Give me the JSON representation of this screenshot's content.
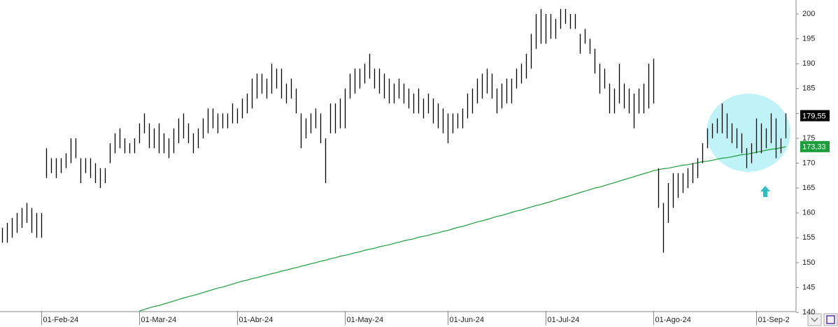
{
  "chart_data": {
    "type": "hilo",
    "categories": [
      null,
      null,
      null,
      null,
      null,
      null,
      null,
      null,
      "01-Feb-24",
      null,
      null,
      null,
      null,
      null,
      null,
      null,
      null,
      null,
      null,
      null,
      null,
      null,
      null,
      null,
      null,
      null,
      null,
      null,
      "01-Mar-24",
      null,
      null,
      null,
      null,
      null,
      null,
      null,
      null,
      null,
      null,
      null,
      null,
      null,
      null,
      null,
      null,
      null,
      null,
      null,
      "01-Abr-24",
      null,
      null,
      null,
      null,
      null,
      null,
      null,
      null,
      null,
      null,
      null,
      null,
      null,
      null,
      null,
      null,
      null,
      null,
      null,
      null,
      null,
      "01-May-24",
      null,
      null,
      null,
      null,
      null,
      null,
      null,
      null,
      null,
      null,
      null,
      null,
      null,
      null,
      null,
      null,
      null,
      null,
      null,
      null,
      "01-Jun-24",
      null,
      null,
      null,
      null,
      null,
      null,
      null,
      null,
      null,
      null,
      null,
      null,
      null,
      null,
      null,
      null,
      null,
      null,
      null,
      "01-Jul-24",
      null,
      null,
      null,
      null,
      null,
      null,
      null,
      null,
      null,
      null,
      null,
      null,
      null,
      null,
      null,
      null,
      null,
      null,
      null,
      null,
      null,
      "01-Ago-24",
      null,
      null,
      null,
      null,
      null,
      null,
      null,
      null,
      null,
      null,
      null,
      null,
      null,
      null,
      null,
      null,
      null,
      null,
      null,
      null,
      "01-Sep-2",
      null,
      null,
      null,
      null,
      null,
      null
    ],
    "series": [
      {
        "color": "#000000",
        "high": [
          157,
          158,
          159,
          160,
          161,
          162,
          161,
          160,
          160,
          173,
          171,
          171,
          171,
          172,
          175,
          175,
          171,
          171,
          171,
          170,
          169,
          169,
          174,
          176,
          177,
          175,
          174,
          175,
          178,
          180,
          178,
          177,
          178,
          176,
          175,
          177,
          179,
          180,
          178,
          176,
          177,
          179,
          181,
          181,
          180,
          180,
          180,
          182,
          181,
          183,
          184,
          187,
          188,
          188,
          187,
          190,
          189,
          189,
          186,
          187,
          185,
          180,
          179,
          180,
          181,
          180,
          175,
          182,
          182,
          183,
          185,
          188,
          189,
          189,
          190,
          192,
          189,
          189,
          188,
          187,
          186,
          187,
          186,
          185,
          184,
          185,
          183,
          184,
          183,
          182,
          181,
          180,
          180,
          180,
          181,
          184,
          185,
          187,
          188,
          189,
          188,
          185,
          186,
          187,
          187,
          189,
          190,
          192,
          196,
          200,
          201,
          200,
          200,
          199,
          201,
          201,
          200,
          200,
          196,
          197,
          195,
          193,
          190,
          189,
          186,
          185,
          190,
          186,
          185,
          184,
          185,
          186,
          190,
          191,
          169,
          162,
          166,
          168,
          168,
          168,
          169,
          170,
          171,
          174,
          177,
          178,
          179,
          182,
          180,
          178,
          177,
          176,
          173,
          174,
          179,
          178,
          177,
          180,
          179,
          175,
          180
        ],
        "low": [
          154,
          154,
          155,
          156,
          157,
          158,
          156,
          155,
          155,
          167,
          168,
          167,
          168,
          169,
          170,
          171,
          166,
          168,
          167,
          166,
          165,
          166,
          170,
          172,
          173,
          172,
          172,
          172,
          174,
          176,
          173,
          173,
          172,
          172,
          171,
          172,
          174,
          175,
          174,
          172,
          173,
          175,
          176,
          177,
          176,
          177,
          177,
          178,
          178,
          179,
          180,
          181,
          183,
          184,
          183,
          184,
          185,
          183,
          182,
          183,
          180,
          173,
          175,
          176,
          177,
          174,
          166,
          176,
          176,
          177,
          177,
          183,
          184,
          185,
          186,
          187,
          185,
          184,
          183,
          182,
          182,
          183,
          182,
          181,
          180,
          180,
          179,
          180,
          178,
          177,
          176,
          174,
          176,
          177,
          177,
          179,
          180,
          182,
          183,
          184,
          183,
          180,
          181,
          182,
          182,
          185,
          186,
          187,
          189,
          193,
          194,
          194,
          195,
          195,
          197,
          198,
          197,
          197,
          192,
          194,
          192,
          188,
          184,
          185,
          180,
          180,
          182,
          181,
          180,
          177,
          180,
          180,
          181,
          182,
          161,
          152,
          158,
          161,
          163,
          164,
          165,
          166,
          167,
          170,
          173,
          175,
          176,
          176,
          175,
          174,
          173,
          172,
          169,
          170,
          172,
          172,
          173,
          174,
          171,
          172,
          175
        ],
        "last_label": {
          "value": 179.55,
          "label": "179,55"
        }
      },
      {
        "color": "#1a9e3a",
        "values": [
          null,
          null,
          null,
          null,
          null,
          null,
          null,
          null,
          null,
          null,
          null,
          null,
          null,
          null,
          null,
          null,
          null,
          null,
          null,
          null,
          null,
          null,
          null,
          null,
          null,
          null,
          null,
          null,
          140.3,
          140.6,
          140.9,
          141.2,
          141.4,
          141.7,
          142.0,
          142.3,
          142.6,
          142.9,
          143.2,
          143.4,
          143.7,
          144.0,
          144.3,
          144.6,
          144.9,
          145.1,
          145.4,
          145.7,
          146.0,
          146.3,
          146.5,
          146.8,
          147.0,
          147.3,
          147.5,
          147.8,
          148.0,
          148.3,
          148.5,
          148.8,
          149.0,
          149.3,
          149.5,
          149.8,
          150.0,
          150.3,
          150.5,
          150.8,
          151.0,
          151.3,
          151.5,
          151.7,
          152.0,
          152.2,
          152.5,
          152.7,
          152.9,
          153.2,
          153.4,
          153.6,
          153.9,
          154.1,
          154.4,
          154.6,
          154.8,
          155.1,
          155.3,
          155.5,
          155.8,
          156.0,
          156.3,
          156.5,
          156.8,
          157.1,
          157.3,
          157.6,
          157.9,
          158.2,
          158.4,
          158.7,
          159.0,
          159.3,
          159.5,
          159.8,
          160.1,
          160.4,
          160.6,
          160.9,
          161.2,
          161.5,
          161.7,
          162.0,
          162.3,
          162.6,
          162.9,
          163.2,
          163.5,
          163.8,
          164.1,
          164.4,
          164.7,
          165.0,
          165.2,
          165.5,
          165.8,
          166.1,
          166.4,
          166.7,
          167.0,
          167.3,
          167.6,
          167.9,
          168.2,
          168.5,
          168.7,
          168.9,
          169.0,
          169.2,
          169.4,
          169.6,
          169.7,
          169.9,
          170.1,
          170.3,
          170.4,
          170.6,
          170.8,
          171.0,
          171.1,
          171.3,
          171.5,
          171.7,
          171.8,
          172.0,
          172.2,
          172.4,
          172.6,
          172.8,
          172.9,
          173.1,
          173.33
        ],
        "last_label": {
          "value": 173.33,
          "label": "173,33"
        }
      }
    ],
    "ylim": [
      140.3,
      202.8
    ],
    "yticks": [
      140,
      145,
      150,
      155,
      160,
      165,
      170,
      175,
      180,
      185,
      190,
      195,
      200
    ],
    "grid": false
  }
}
